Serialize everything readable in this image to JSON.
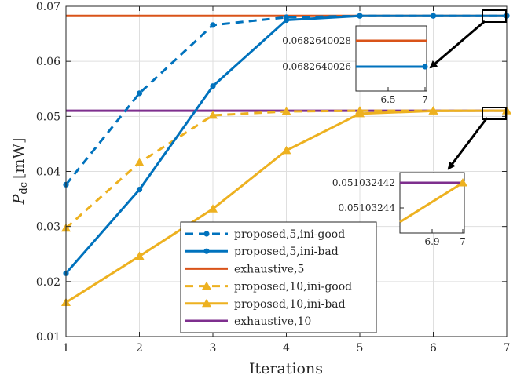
{
  "chart_data": {
    "type": "line",
    "title": "",
    "xlabel": "Iterations",
    "ylabel": "P",
    "ylabel_sub": "dc",
    "ylabel_unit": "[mW]",
    "xlim": [
      1,
      7
    ],
    "ylim": [
      0.01,
      0.07
    ],
    "grid": true,
    "legend_position": "bottom-center",
    "x_ticks": [
      "1",
      "2",
      "3",
      "4",
      "5",
      "6",
      "7"
    ],
    "y_ticks": [
      "0.01",
      "0.02",
      "0.03",
      "0.04",
      "0.05",
      "0.06",
      "0.07"
    ],
    "x": [
      1,
      2,
      3,
      4,
      5,
      6,
      7
    ],
    "series": [
      {
        "name": "proposed,5,ini-good",
        "color": "#0072BD",
        "style": "dashed",
        "marker": "dot",
        "values": [
          0.0376,
          0.0542,
          0.0666,
          0.068,
          0.06826,
          0.06826,
          0.06826
        ]
      },
      {
        "name": "proposed,5,ini-bad",
        "color": "#0072BD",
        "style": "solid",
        "marker": "dot",
        "values": [
          0.0215,
          0.0367,
          0.0555,
          0.0675,
          0.06826,
          0.06826,
          0.06826
        ]
      },
      {
        "name": "exhaustive,5",
        "color": "#D95319",
        "style": "solid",
        "marker": "none",
        "values": [
          0.06826,
          0.06826,
          0.06826,
          0.06826,
          0.06826,
          0.06826,
          0.06826
        ]
      },
      {
        "name": "proposed,10,ini-good",
        "color": "#EDB120",
        "style": "dashed",
        "marker": "triangle",
        "values": [
          0.0297,
          0.0416,
          0.0502,
          0.0509,
          0.05103,
          0.05103,
          0.05103
        ]
      },
      {
        "name": "proposed,10,ini-bad",
        "color": "#EDB120",
        "style": "solid",
        "marker": "triangle",
        "values": [
          0.0162,
          0.0246,
          0.0332,
          0.0438,
          0.0505,
          0.051,
          0.05103
        ]
      },
      {
        "name": "exhaustive,10",
        "color": "#7E2F8E",
        "style": "solid",
        "marker": "none",
        "values": [
          0.05103,
          0.05103,
          0.05103,
          0.05103,
          0.05103,
          0.05103,
          0.05103
        ]
      }
    ],
    "insets": [
      {
        "name": "inset-top",
        "x_ticks": [
          "6.5",
          "7"
        ],
        "y_ticks": [
          "0.0682640028",
          "0.0682640026"
        ],
        "lines": [
          {
            "color": "#D95319",
            "marker": "none",
            "value_label": "0.0682640028"
          },
          {
            "color": "#0072BD",
            "marker": "dot",
            "value_label": "0.0682640026"
          }
        ]
      },
      {
        "name": "inset-bottom",
        "x_ticks": [
          "6.9",
          "7"
        ],
        "y_ticks": [
          "0.051032442",
          "0.05103244"
        ],
        "lines": [
          {
            "color": "#7E2F8E",
            "marker": "none"
          },
          {
            "color": "#EDB120",
            "marker": "triangle"
          }
        ]
      }
    ]
  }
}
